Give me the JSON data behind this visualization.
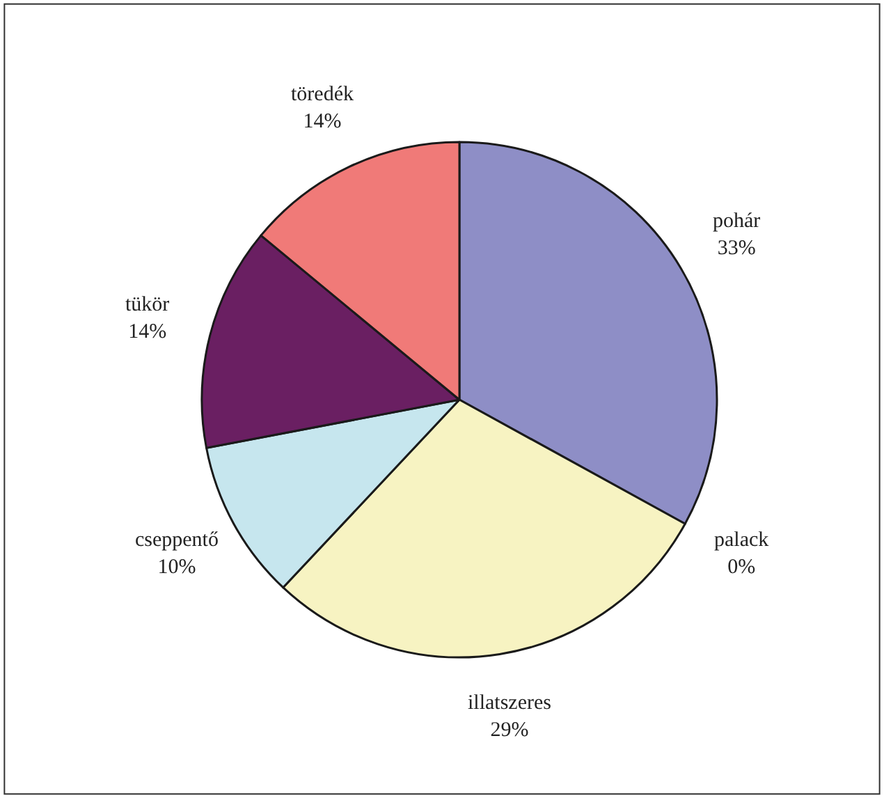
{
  "chart_data": {
    "type": "pie",
    "categories": [
      "pohár",
      "palack",
      "illatszeres",
      "cseppentő",
      "tükör",
      "töredék"
    ],
    "values": [
      33,
      0,
      29,
      10,
      14,
      14
    ],
    "value_labels": [
      "33%",
      "0%",
      "29%",
      "10%",
      "14%",
      "14%"
    ],
    "colors": [
      "#8e8ec6",
      "#2c3e80",
      "#f7f3c2",
      "#c6e6ee",
      "#6a1f62",
      "#f07a78"
    ],
    "legend": false
  }
}
